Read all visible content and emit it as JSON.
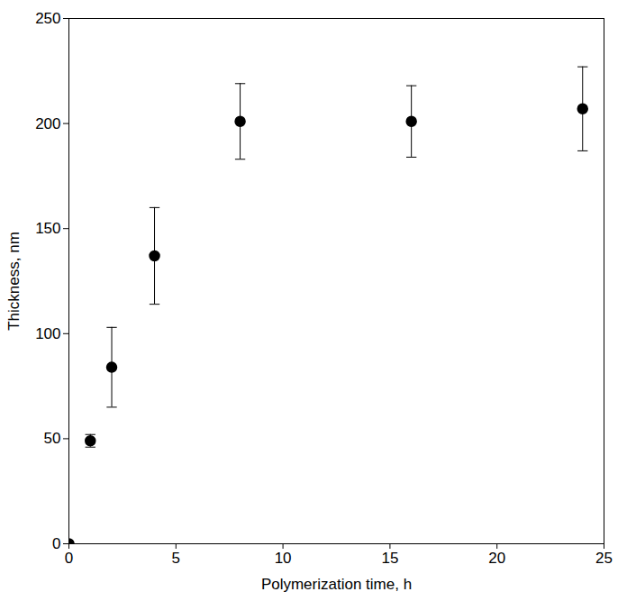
{
  "chart_data": {
    "type": "scatter",
    "x_label": "Polymerization time, h",
    "y_label": "Thickness, nm",
    "x": [
      0,
      1,
      2,
      4,
      8,
      16,
      24
    ],
    "values": [
      0,
      49,
      84,
      137,
      201,
      201,
      207
    ],
    "errors": [
      0,
      3,
      19,
      23,
      18,
      17,
      20
    ],
    "color": "#000000",
    "marker": "circle",
    "xlim": [
      0,
      25
    ],
    "xticks": [
      0,
      5,
      10,
      15,
      20,
      25
    ],
    "ylim": [
      0,
      250
    ],
    "yticks": [
      0,
      50,
      100,
      150,
      200,
      250
    ],
    "grid": false
  }
}
